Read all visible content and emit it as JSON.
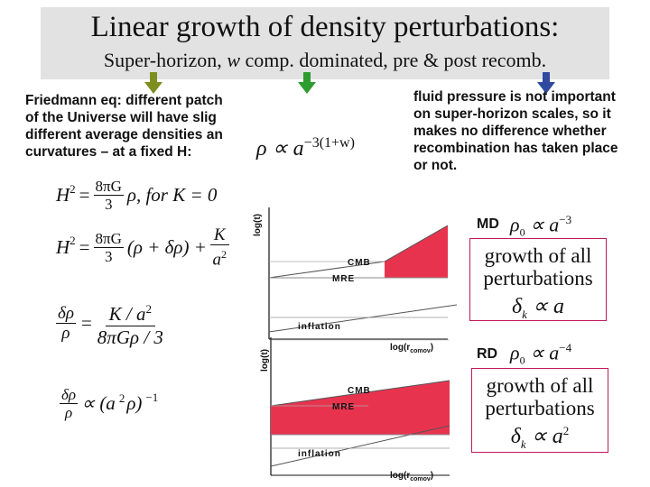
{
  "slide": {
    "title": "Linear growth of density perturbations:",
    "subtitle_parts": [
      "Super-horizon,",
      "w",
      "comp. dominated,",
      "pre & post recomb."
    ],
    "left_text": [
      "Friedmann eq: different patch",
      "of the Universe will have slig",
      "different average densities an",
      "curvatures – at a fixed H:"
    ],
    "right_text": [
      "fluid pressure is not important",
      "on  super-horizon scales, so it",
      "makes no difference whether",
      "recombination has taken place",
      "or not."
    ],
    "colors": {
      "accent_fill": "#e8334f",
      "arrow_olive": "#7f8f1f",
      "arrow_green": "#2e9c2e",
      "arrow_blue": "#2f4a9e",
      "box_border": "#c2185b",
      "title_band": "#e2e2e2"
    }
  },
  "equations": {
    "rho_scaling": {
      "lhs": "ρ ∝ a",
      "exp": "−3(1+w)"
    },
    "friedmann_flat": {
      "lhs": "H",
      "sq": "2",
      "frac_num": "8πG",
      "frac_den": "3",
      "tail": "ρ,   for  K = 0"
    },
    "friedmann_perturbed": {
      "lhs": "H",
      "sq": "2",
      "frac_num": "8πG",
      "frac_den": "3",
      "mid": "(ρ + δρ) +",
      "k_num": "K",
      "k_den": "a"
    },
    "delta_ratio": {
      "num_left": "δρ",
      "den_left": "ρ",
      "num_right": "K / a",
      "den_right": "8πGρ / 3"
    },
    "delta_prop": {
      "num": "δρ",
      "den": "ρ",
      "rhs": "∝ (a",
      "rhs_tail": "ρ)",
      "exp": "−1"
    }
  },
  "diagram_md": {
    "y_axis": "log(t)",
    "labels": {
      "cmb": "CMB",
      "mre": "MRE",
      "inflation": "inflation",
      "x_axis": "log(r"
    },
    "x_sub": "comov",
    "x_close": ")",
    "tag": "MD",
    "rho_law": {
      "base": "ρ",
      "sub": "0",
      "prop": "∝ a",
      "exp": "−3"
    },
    "box": {
      "line1": "growth of all",
      "line2": "perturbations",
      "law": "δ",
      "law_sub": "k",
      "law_rhs": "∝ a",
      "law_exp": ""
    }
  },
  "diagram_rd": {
    "y_axis": "log(t)",
    "labels": {
      "cmb": "CMB",
      "mre": "MRE",
      "inflation": "inflation",
      "x_axis": "log(r"
    },
    "x_sub": "comov",
    "x_close": ")",
    "tag": "RD",
    "rho_law": {
      "base": "ρ",
      "sub": "0",
      "prop": "∝ a",
      "exp": "−4"
    },
    "box": {
      "line1": "growth of all",
      "line2": "perturbations",
      "law": "δ",
      "law_sub": "k",
      "law_rhs": "∝ a",
      "law_exp": "2"
    }
  }
}
